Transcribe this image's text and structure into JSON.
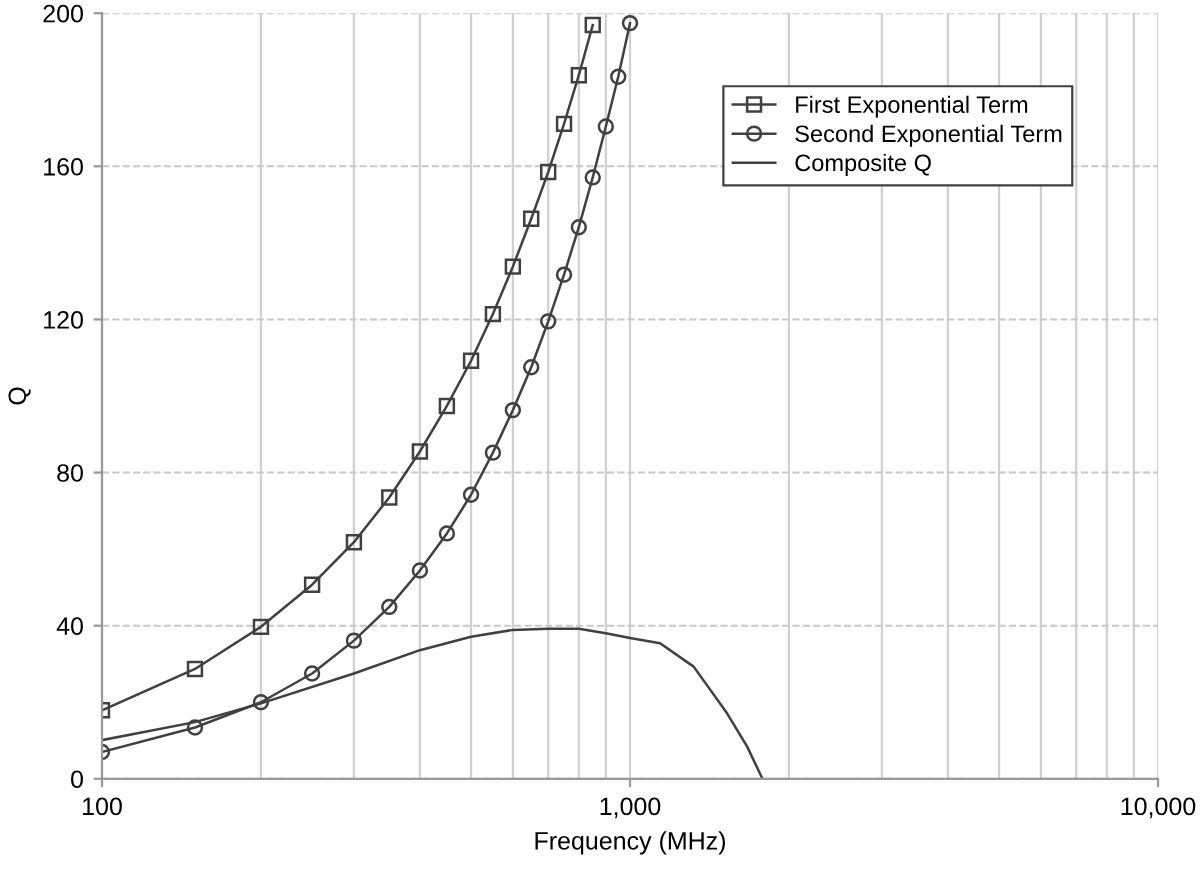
{
  "chart_data": {
    "type": "line",
    "xlabel": "Frequency (MHz)",
    "ylabel": "Q",
    "log": "x",
    "xlim": [
      100,
      10000
    ],
    "xticks": [
      100,
      {
        "value": 1000,
        "label": "1,000"
      },
      {
        "value": 10000,
        "label": "10,000"
      }
    ],
    "ylim": [
      0,
      200
    ],
    "yticks": [
      0,
      40,
      80,
      120,
      160,
      200
    ],
    "grid": true,
    "legend": "top right",
    "series": [
      {
        "name": "First Exponential Term",
        "color": "#404040",
        "marker": "square",
        "x": [
          100,
          150,
          200,
          250,
          300,
          350,
          400,
          450,
          500,
          550,
          600,
          650,
          700,
          750,
          800,
          850
        ],
        "values": [
          17.9,
          28.7,
          39.7,
          50.7,
          61.8,
          73.5,
          85.5,
          97.4,
          109.2,
          121.4,
          133.8,
          146.3,
          158.5,
          171.1,
          183.8,
          196.9
        ]
      },
      {
        "name": "Second Exponential Term",
        "color": "#404040",
        "marker": "circle",
        "x": [
          100,
          150,
          200,
          250,
          300,
          350,
          400,
          450,
          500,
          550,
          600,
          650,
          700,
          750,
          800,
          850,
          900,
          950,
          1000
        ],
        "values": [
          7.0,
          13.4,
          20.0,
          27.5,
          36.1,
          44.9,
          54.4,
          64.1,
          74.2,
          85.2,
          96.3,
          107.5,
          119.5,
          131.7,
          144.1,
          157.1,
          170.4,
          183.4,
          197.4
        ]
      },
      {
        "name": "Composite Q",
        "color": "#404040",
        "marker": "none",
        "x": [
          100,
          150,
          200,
          300,
          400,
          500,
          600,
          700,
          800,
          900,
          1000,
          1140,
          1320,
          1527,
          1667,
          1782
        ],
        "values": [
          10.1,
          14.8,
          19.7,
          27.5,
          33.6,
          37.1,
          38.9,
          39.2,
          39.2,
          38.0,
          36.8,
          35.4,
          29.3,
          17.1,
          8.4,
          0
        ]
      }
    ]
  }
}
